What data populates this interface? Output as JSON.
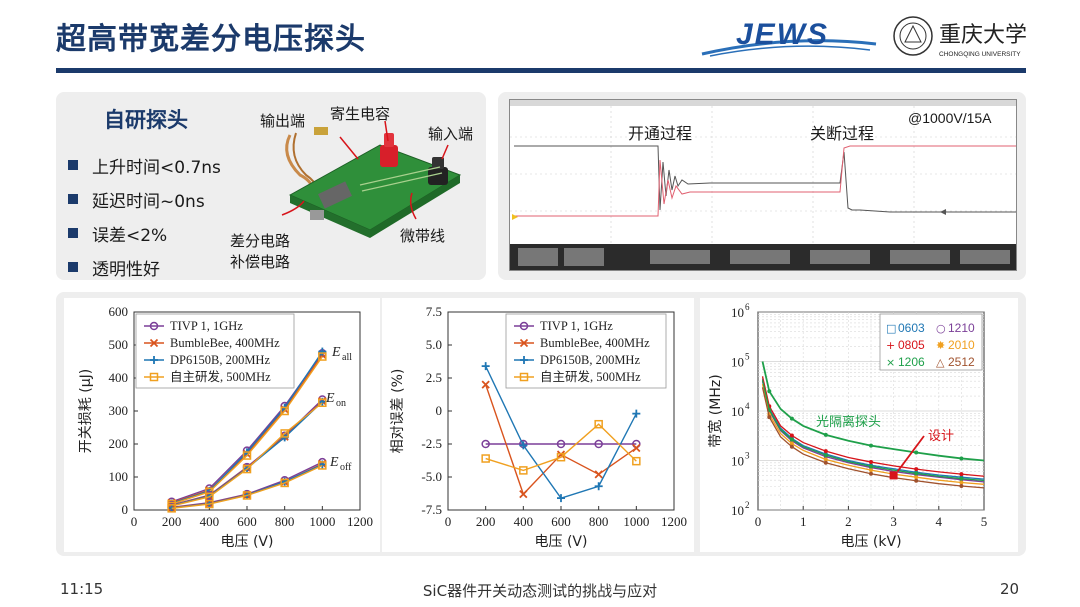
{
  "slide": {
    "title": "超高带宽差分电压探头",
    "logo_left_text": "JEWS",
    "logo_right_text": "重庆大学",
    "logo_right_subtext": "CHONGQING UNIVERSITY",
    "colors": {
      "title": "#1b3a6b",
      "panel": "#eeeeee",
      "accent_red": "#d7141a"
    }
  },
  "probe_panel": {
    "heading": "自研探头",
    "bullets": [
      "上升时间<0.7ns",
      "延迟时间~0ns",
      "误差<2%",
      "透明性好"
    ],
    "labels": {
      "output": "输出端",
      "parasitic": "寄生电容",
      "input": "输入端",
      "diff_line1": "差分电路",
      "diff_line2": "补偿电路",
      "microstrip": "微带线"
    }
  },
  "scope_panel": {
    "turn_on": "开通过程",
    "turn_off": "关断过程",
    "condition": "@1000V/15A"
  },
  "chart_data": [
    {
      "type": "line",
      "xlabel": "电压 (V)",
      "ylabel": "开关损耗 (μJ)",
      "xlim": [
        0,
        1200
      ],
      "ylim": [
        0,
        600
      ],
      "xticks": [
        "0",
        "200",
        "400",
        "600",
        "800",
        "1000",
        "1200"
      ],
      "yticks": [
        "0",
        "100",
        "200",
        "300",
        "400",
        "500",
        "600"
      ],
      "legend": [
        "TIVP 1, 1GHz",
        "BumbleBee, 400MHz",
        "DP6150B, 200MHz",
        "自主研发, 500MHz"
      ],
      "annotations": [
        "E",
        "all",
        "E",
        "on",
        "E",
        "off"
      ],
      "x": [
        200,
        400,
        600,
        800,
        1000
      ],
      "series": [
        {
          "name": "TIVP 1, 1GHz",
          "group": "all",
          "values": [
            25,
            65,
            180,
            315,
            475
          ]
        },
        {
          "name": "BumbleBee, 400MHz",
          "group": "all",
          "values": [
            22,
            60,
            170,
            305,
            470
          ]
        },
        {
          "name": "DP6150B, 200MHz",
          "group": "all",
          "values": [
            20,
            58,
            175,
            310,
            480
          ]
        },
        {
          "name": "自主研发, 500MHz",
          "group": "all",
          "values": [
            18,
            55,
            165,
            300,
            465
          ]
        },
        {
          "name": "TIVP 1, 1GHz",
          "group": "on",
          "values": [
            15,
            45,
            130,
            225,
            335
          ]
        },
        {
          "name": "BumbleBee, 400MHz",
          "group": "on",
          "values": [
            14,
            43,
            128,
            222,
            330
          ]
        },
        {
          "name": "DP6150B, 200MHz",
          "group": "on",
          "values": [
            13,
            42,
            126,
            220,
            328
          ]
        },
        {
          "name": "自主研发, 500MHz",
          "group": "on",
          "values": [
            12,
            40,
            124,
            232,
            325
          ]
        },
        {
          "name": "TIVP 1, 1GHz",
          "group": "off",
          "values": [
            8,
            22,
            48,
            90,
            145
          ]
        },
        {
          "name": "BumbleBee, 400MHz",
          "group": "off",
          "values": [
            7,
            20,
            46,
            85,
            140
          ]
        },
        {
          "name": "DP6150B, 200MHz",
          "group": "off",
          "values": [
            6,
            19,
            45,
            86,
            138
          ]
        },
        {
          "name": "自主研发, 500MHz",
          "group": "off",
          "values": [
            5,
            18,
            44,
            82,
            135
          ]
        }
      ],
      "colors": [
        "#7b3f98",
        "#d9541e",
        "#1f77b4",
        "#f0a020"
      ]
    },
    {
      "type": "line",
      "xlabel": "电压 (V)",
      "ylabel": "相对误差 (%)",
      "xlim": [
        0,
        1200
      ],
      "ylim": [
        -7.5,
        7.5
      ],
      "xticks": [
        "0",
        "200",
        "400",
        "600",
        "800",
        "1000",
        "1200"
      ],
      "yticks": [
        "-7.5",
        "-5.0",
        "-2.5",
        "0",
        "2.5",
        "5.0",
        "7.5"
      ],
      "x": [
        200,
        400,
        600,
        800,
        1000
      ],
      "series": [
        {
          "name": "TIVP 1, 1GHz",
          "values": [
            -2.5,
            -2.5,
            -2.5,
            -2.5,
            -2.5
          ]
        },
        {
          "name": "BumbleBee, 400MHz",
          "values": [
            2.0,
            -6.3,
            -3.3,
            -4.8,
            -2.8
          ]
        },
        {
          "name": "DP6150B, 200MHz",
          "values": [
            3.4,
            -2.6,
            -6.6,
            -5.7,
            -0.2
          ]
        },
        {
          "name": "自主研发, 500MHz",
          "values": [
            -3.6,
            -4.5,
            -3.5,
            -1.0,
            -3.8
          ]
        }
      ],
      "colors": [
        "#7b3f98",
        "#d9541e",
        "#1f77b4",
        "#f0a020"
      ]
    },
    {
      "type": "line",
      "scale": "log-y",
      "xlabel": "电压 (kV)",
      "ylabel": "带宽 (MHz)",
      "xlim": [
        0,
        5
      ],
      "ylim": [
        100,
        1000000
      ],
      "xticks": [
        "0",
        "1",
        "2",
        "3",
        "4",
        "5"
      ],
      "yticks": [
        {
          "base": "10",
          "exp": "2"
        },
        {
          "base": "10",
          "exp": "3"
        },
        {
          "base": "10",
          "exp": "4"
        },
        {
          "base": "10",
          "exp": "5"
        },
        {
          "base": "10",
          "exp": "6"
        }
      ],
      "annotations": [
        "光隔离探头",
        "设计"
      ],
      "legend": [
        {
          "label": "0603",
          "marker": "□",
          "color": "#1f77b4"
        },
        {
          "label": "1210",
          "marker": "○",
          "color": "#7b3f98"
        },
        {
          "label": "0805",
          "marker": "+",
          "color": "#d7141a"
        },
        {
          "label": "2010",
          "marker": "✸",
          "color": "#f0a020"
        },
        {
          "label": "1206",
          "marker": "×",
          "color": "#1fa04a"
        },
        {
          "label": "2512",
          "marker": "△",
          "color": "#a0522d"
        }
      ],
      "x": [
        0.1,
        0.25,
        0.5,
        0.75,
        1,
        1.5,
        2,
        2.5,
        3,
        3.5,
        4,
        4.5,
        5
      ],
      "series": [
        {
          "name": "光隔离探头",
          "values": [
            100000,
            25000,
            11000,
            7000,
            5000,
            3300,
            2500,
            2000,
            1700,
            1450,
            1250,
            1100,
            1000
          ]
        },
        {
          "name": "0603",
          "values": [
            45000,
            11000,
            4500,
            2800,
            2000,
            1350,
            1000,
            800,
            680,
            580,
            510,
            460,
            420
          ]
        },
        {
          "name": "1210",
          "values": [
            40000,
            10000,
            4000,
            2500,
            1800,
            1200,
            900,
            720,
            600,
            520,
            460,
            410,
            370
          ]
        },
        {
          "name": "0805",
          "values": [
            50000,
            12500,
            5000,
            3200,
            2300,
            1550,
            1150,
            930,
            780,
            670,
            590,
            530,
            480
          ]
        },
        {
          "name": "2010",
          "values": [
            35000,
            8500,
            3500,
            2200,
            1600,
            1050,
            800,
            640,
            530,
            460,
            400,
            360,
            330
          ]
        },
        {
          "name": "1206",
          "values": [
            42000,
            10500,
            4200,
            2650,
            1900,
            1280,
            950,
            760,
            640,
            550,
            480,
            430,
            395
          ]
        },
        {
          "name": "2512",
          "values": [
            30000,
            7500,
            3000,
            1900,
            1350,
            900,
            680,
            540,
            450,
            390,
            340,
            305,
            280
          ]
        }
      ],
      "design_point": {
        "x": 3,
        "y": 500
      }
    }
  ],
  "footer": {
    "time": "11:15",
    "center": "SiC器件开关动态测试的挑战与应对",
    "page": "20"
  }
}
